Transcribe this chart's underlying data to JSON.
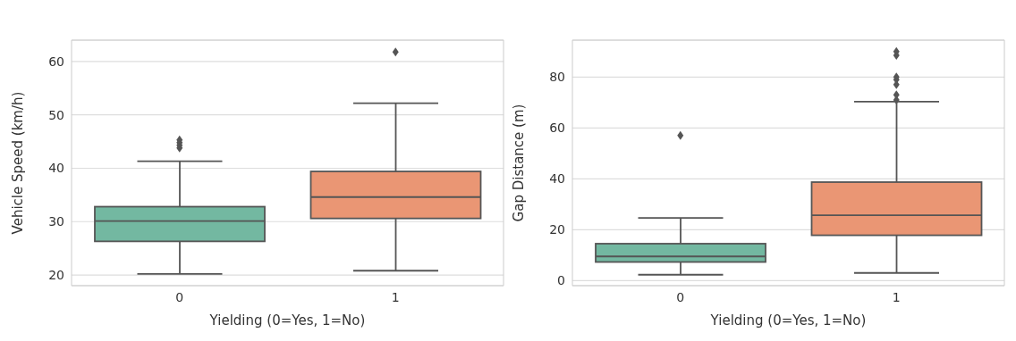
{
  "chart_data": [
    {
      "type": "box",
      "categories": [
        "0",
        "1"
      ],
      "xlabel": "Yielding (0=Yes, 1=No)",
      "ylabel": "Vehicle Speed (km/h)",
      "colors": [
        "#73b8a1",
        "#ea9674"
      ],
      "ylim": [
        18,
        64
      ],
      "yticks": [
        20,
        30,
        40,
        50,
        60
      ],
      "grid": "y",
      "marker": "diamond",
      "boxes": [
        {
          "low": 20.2,
          "q1": 26.3,
          "median": 30.1,
          "q3": 32.8,
          "high": 41.3,
          "outliers": [
            43.8,
            44.3,
            44.8,
            45.3
          ]
        },
        {
          "low": 20.8,
          "q1": 30.6,
          "median": 34.6,
          "q3": 39.4,
          "high": 52.2,
          "outliers": [
            61.8
          ]
        }
      ]
    },
    {
      "type": "box",
      "categories": [
        "0",
        "1"
      ],
      "xlabel": "Yielding (0=Yes, 1=No)",
      "ylabel": "Gap Distance (m)",
      "colors": [
        "#73b8a1",
        "#ea9674"
      ],
      "ylim": [
        -2,
        94.5
      ],
      "yticks": [
        0,
        20,
        40,
        60,
        80
      ],
      "grid": "y",
      "marker": "diamond",
      "boxes": [
        {
          "low": 2.3,
          "q1": 7.3,
          "median": 9.5,
          "q3": 14.5,
          "high": 24.6,
          "outliers": [
            57
          ]
        },
        {
          "low": 3,
          "q1": 17.8,
          "median": 25.7,
          "q3": 38.7,
          "high": 70.3,
          "outliers": [
            71,
            73,
            77,
            79,
            80,
            88.5,
            90
          ]
        }
      ]
    }
  ]
}
